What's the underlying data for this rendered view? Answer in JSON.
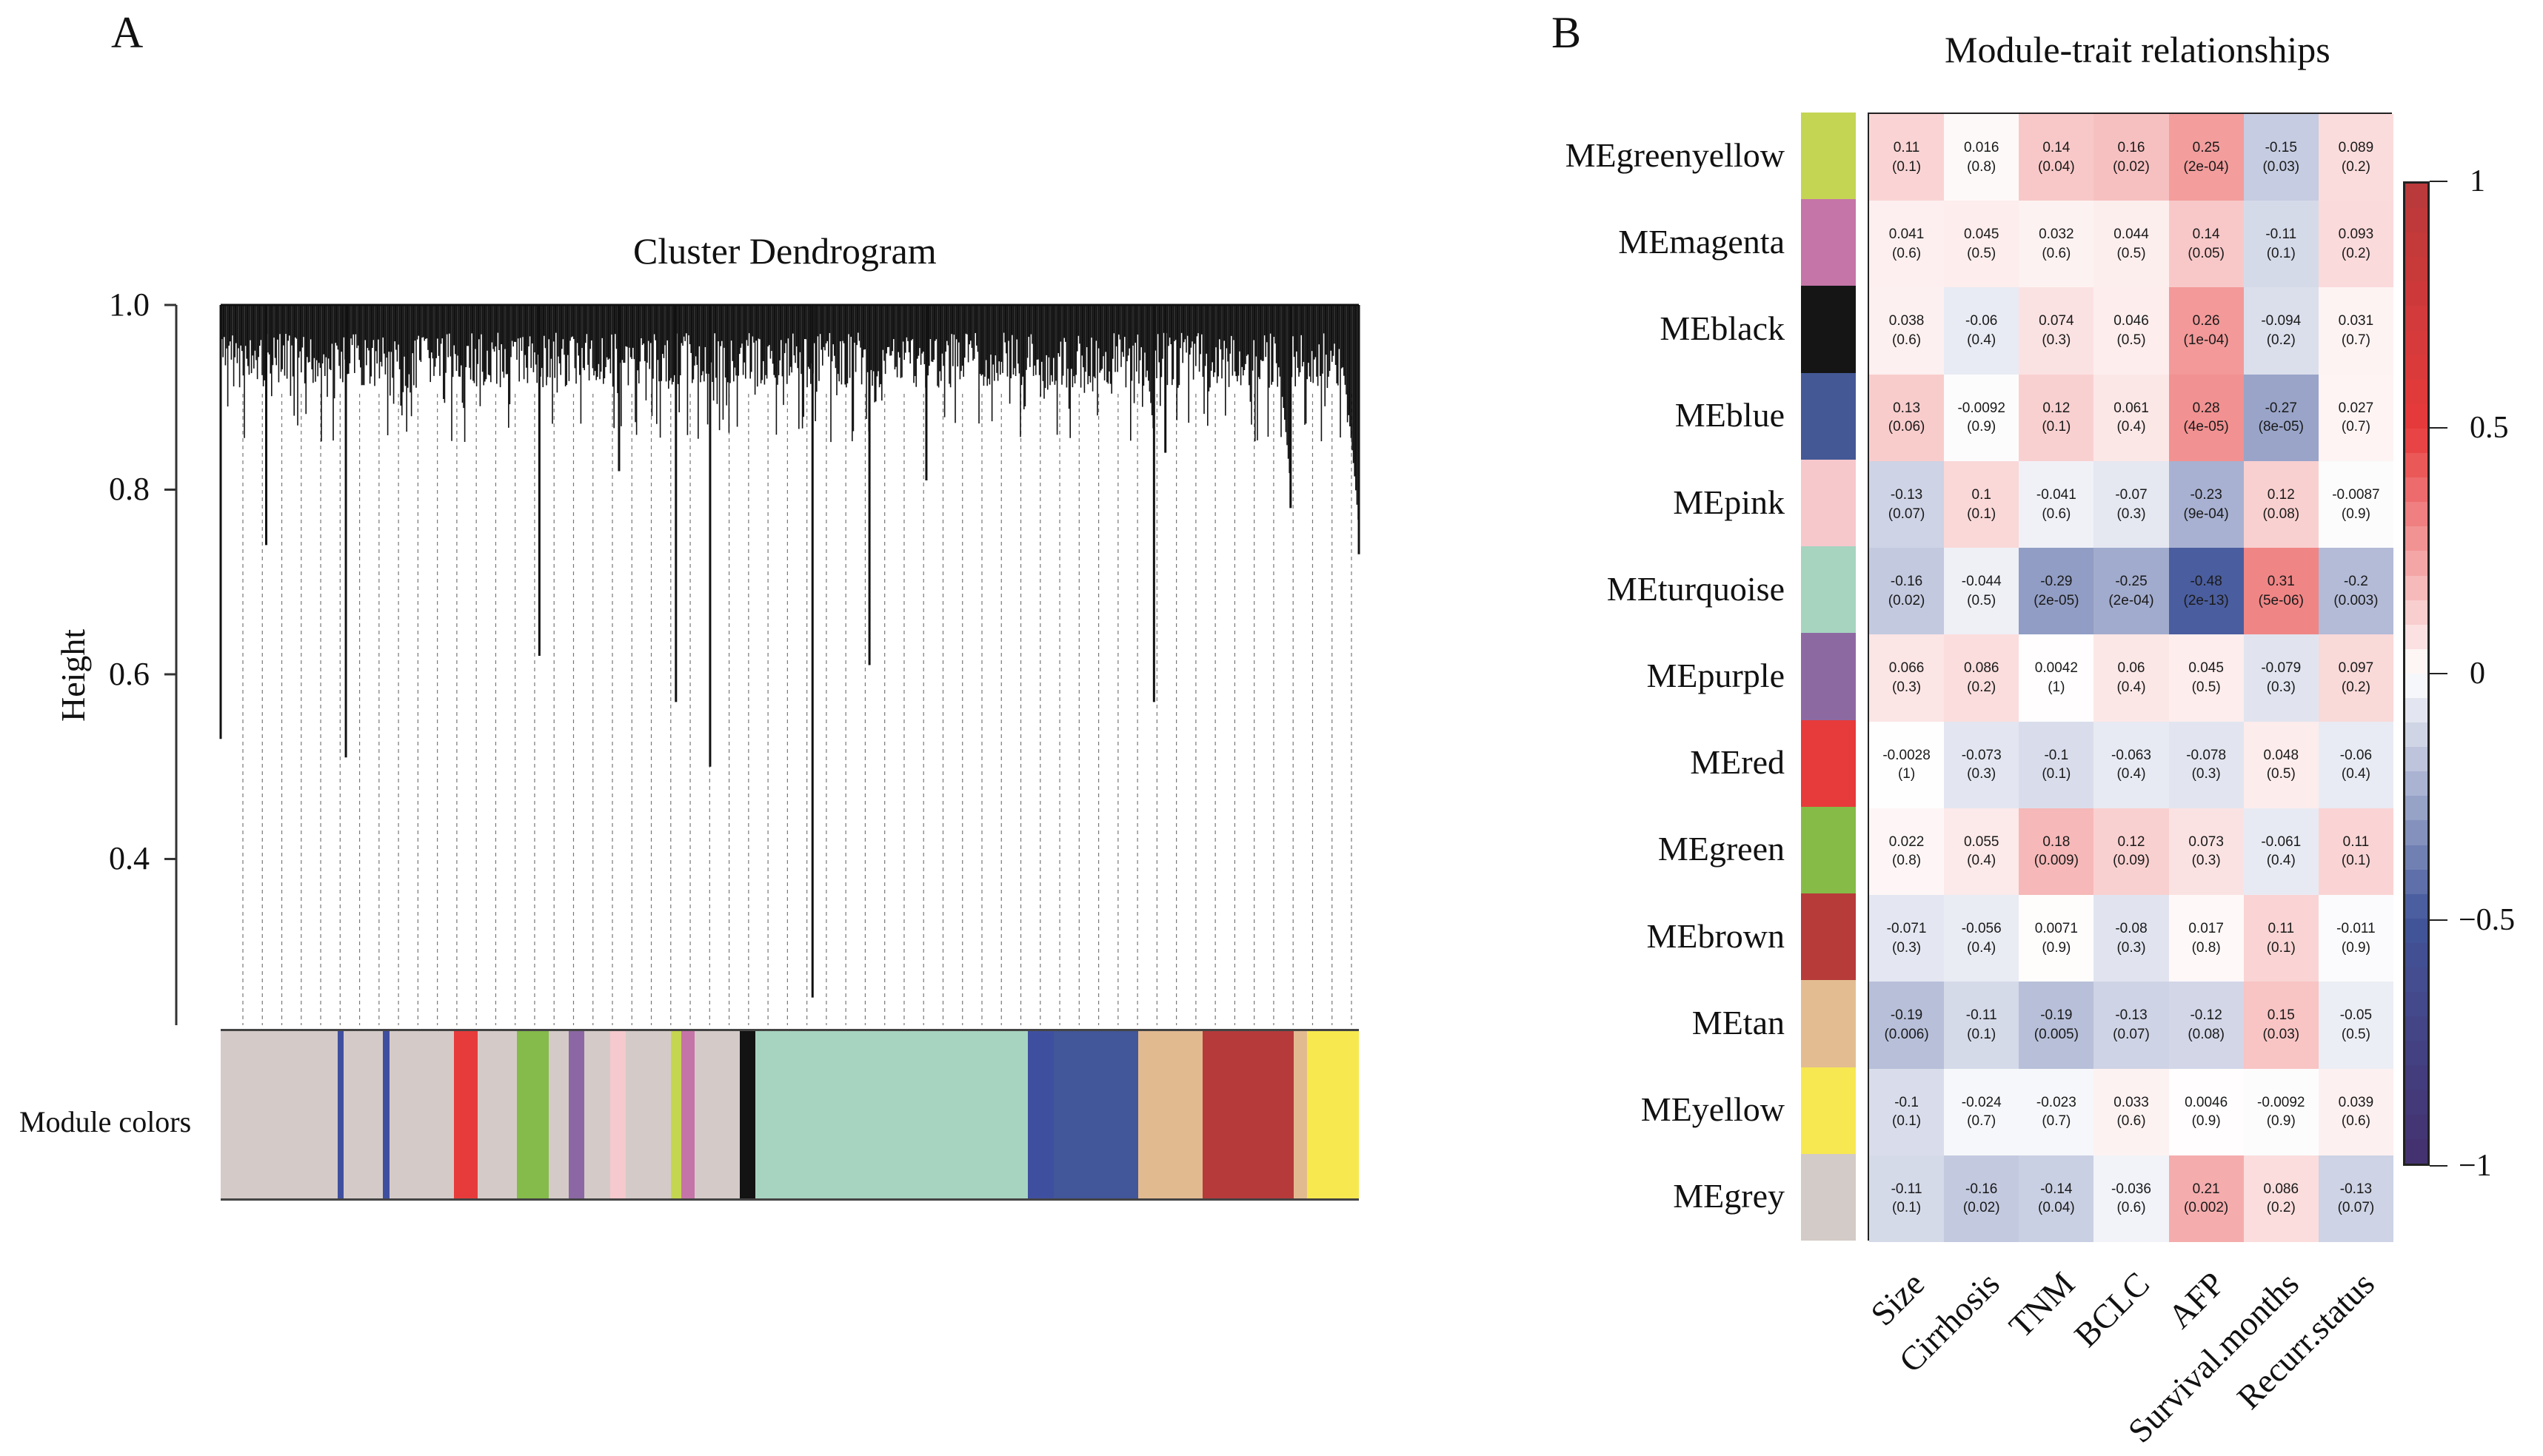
{
  "panels": {
    "a_label": "A",
    "b_label": "B"
  },
  "chart_data": [
    {
      "type": "dendrogram",
      "title": "Cluster Dendrogram",
      "ylabel": "Height",
      "xlabel": "",
      "ylim": [
        0.22,
        1.0
      ],
      "yticks": [
        {
          "value": 1.0,
          "label": "1.0"
        },
        {
          "value": 0.8,
          "label": "0.8"
        },
        {
          "value": 0.6,
          "label": "0.6"
        },
        {
          "value": 0.4,
          "label": "0.4"
        }
      ],
      "color_bar_label": "Module colors",
      "deep_branches": [
        {
          "x": 0.0,
          "height": 0.53
        },
        {
          "x": 0.04,
          "height": 0.74
        },
        {
          "x": 0.11,
          "height": 0.51
        },
        {
          "x": 0.28,
          "height": 0.62
        },
        {
          "x": 0.35,
          "height": 0.82
        },
        {
          "x": 0.4,
          "height": 0.57
        },
        {
          "x": 0.43,
          "height": 0.5
        },
        {
          "x": 0.52,
          "height": 0.25
        },
        {
          "x": 0.57,
          "height": 0.61
        },
        {
          "x": 0.62,
          "height": 0.81
        },
        {
          "x": 0.82,
          "height": 0.57
        },
        {
          "x": 0.83,
          "height": 0.84
        },
        {
          "x": 0.94,
          "height": 0.78
        },
        {
          "x": 1.0,
          "height": 0.73
        }
      ],
      "module_color_segments": [
        {
          "color": "#d4cbc8",
          "fraction": 0.09
        },
        {
          "color": "#3f4fa0",
          "fraction": 0.005
        },
        {
          "color": "#d4cbc8",
          "fraction": 0.03
        },
        {
          "color": "#3f4fa0",
          "fraction": 0.005
        },
        {
          "color": "#d4cbc8",
          "fraction": 0.05
        },
        {
          "color": "#e73b3b",
          "fraction": 0.018
        },
        {
          "color": "#d4cbc8",
          "fraction": 0.03
        },
        {
          "color": "#85bb4a",
          "fraction": 0.025
        },
        {
          "color": "#d4cbc8",
          "fraction": 0.015
        },
        {
          "color": "#8b68a4",
          "fraction": 0.012
        },
        {
          "color": "#d4cbc8",
          "fraction": 0.02
        },
        {
          "color": "#f5c9cd",
          "fraction": 0.012
        },
        {
          "color": "#d4cbc8",
          "fraction": 0.035
        },
        {
          "color": "#c4d54f",
          "fraction": 0.008
        },
        {
          "color": "#c574a8",
          "fraction": 0.01
        },
        {
          "color": "#d4cbc8",
          "fraction": 0.035
        },
        {
          "color": "#131313",
          "fraction": 0.012
        },
        {
          "color": "#a7d4c0",
          "fraction": 0.09
        },
        {
          "color": "#a7d4c0",
          "fraction": 0.12
        },
        {
          "color": "#3f4fa0",
          "fraction": 0.02
        },
        {
          "color": "#42569a",
          "fraction": 0.065
        },
        {
          "color": "#e2ba90",
          "fraction": 0.05
        },
        {
          "color": "#b63a3a",
          "fraction": 0.07
        },
        {
          "color": "#e2ba90",
          "fraction": 0.01
        },
        {
          "color": "#f7e84f",
          "fraction": 0.04
        }
      ]
    },
    {
      "type": "heatmap",
      "title": "Module-trait relationships",
      "columns": [
        "Size",
        "Cirrhosis",
        "TNM",
        "BCLC",
        "AFP",
        "Survival.months",
        "Recurr.status"
      ],
      "rows": [
        {
          "name": "MEgreenyellow",
          "color": "#c4d554",
          "values": [
            0.11,
            0.016,
            0.14,
            0.16,
            0.25,
            -0.15,
            0.089
          ],
          "pvalues": [
            "0.1",
            "0.8",
            "0.04",
            "0.02",
            "2e-04",
            "0.03",
            "0.2"
          ]
        },
        {
          "name": "MEmagenta",
          "color": "#c575a7",
          "values": [
            0.041,
            0.045,
            0.032,
            0.044,
            0.14,
            -0.11,
            0.093
          ],
          "pvalues": [
            "0.6",
            "0.5",
            "0.6",
            "0.5",
            "0.05",
            "0.1",
            "0.2"
          ]
        },
        {
          "name": "MEblack",
          "color": "#151515",
          "values": [
            0.038,
            -0.06,
            0.074,
            0.046,
            0.26,
            -0.094,
            0.031
          ],
          "pvalues": [
            "0.6",
            "0.4",
            "0.3",
            "0.5",
            "1e-04",
            "0.2",
            "0.7"
          ]
        },
        {
          "name": "MEblue",
          "color": "#445896",
          "values": [
            0.13,
            -0.0092,
            0.12,
            0.061,
            0.28,
            -0.27,
            0.027
          ],
          "pvalues": [
            "0.06",
            "0.9",
            "0.1",
            "0.4",
            "4e-05",
            "8e-05",
            "0.7"
          ]
        },
        {
          "name": "MEpink",
          "color": "#f6c8cc",
          "values": [
            -0.13,
            0.1,
            -0.041,
            -0.07,
            -0.23,
            0.12,
            -0.0087
          ],
          "pvalues": [
            "0.07",
            "0.1",
            "0.6",
            "0.3",
            "9e-04",
            "0.08",
            "0.9"
          ]
        },
        {
          "name": "MEturquoise",
          "color": "#a6d4bf",
          "values": [
            -0.16,
            -0.044,
            -0.29,
            -0.25,
            -0.48,
            0.31,
            -0.2
          ],
          "pvalues": [
            "0.02",
            "0.5",
            "2e-05",
            "2e-04",
            "2e-13",
            "5e-06",
            "0.003"
          ]
        },
        {
          "name": "MEpurple",
          "color": "#8d69a2",
          "values": [
            0.066,
            0.086,
            0.0042,
            0.06,
            0.045,
            -0.079,
            0.097
          ],
          "pvalues": [
            "0.3",
            "0.2",
            "1",
            "0.4",
            "0.5",
            "0.3",
            "0.2"
          ]
        },
        {
          "name": "MEred",
          "color": "#e73a3b",
          "values": [
            -0.0028,
            -0.073,
            -0.1,
            -0.063,
            -0.078,
            0.048,
            -0.06
          ],
          "pvalues": [
            "1",
            "0.3",
            "0.1",
            "0.4",
            "0.3",
            "0.5",
            "0.4"
          ]
        },
        {
          "name": "MEgreen",
          "color": "#86bb47",
          "values": [
            0.022,
            0.055,
            0.18,
            0.12,
            0.073,
            -0.061,
            0.11
          ],
          "pvalues": [
            "0.8",
            "0.4",
            "0.009",
            "0.09",
            "0.3",
            "0.4",
            "0.1"
          ]
        },
        {
          "name": "MEbrown",
          "color": "#b63b39",
          "values": [
            -0.071,
            -0.056,
            0.0071,
            -0.08,
            0.017,
            0.11,
            -0.011
          ],
          "pvalues": [
            "0.3",
            "0.4",
            "0.9",
            "0.3",
            "0.8",
            "0.1",
            "0.9"
          ]
        },
        {
          "name": "MEtan",
          "color": "#e3bd91",
          "values": [
            -0.19,
            -0.11,
            -0.19,
            -0.13,
            -0.12,
            0.15,
            -0.05
          ],
          "pvalues": [
            "0.006",
            "0.1",
            "0.005",
            "0.07",
            "0.08",
            "0.03",
            "0.5"
          ]
        },
        {
          "name": "MEyellow",
          "color": "#f7e851",
          "values": [
            -0.1,
            -0.024,
            -0.023,
            0.033,
            0.0046,
            -0.0092,
            0.039
          ],
          "pvalues": [
            "0.1",
            "0.7",
            "0.7",
            "0.6",
            "0.9",
            "0.9",
            "0.6"
          ]
        },
        {
          "name": "MEgrey",
          "color": "#d3cbc7",
          "values": [
            -0.11,
            -0.16,
            -0.14,
            -0.036,
            0.21,
            0.086,
            -0.13
          ],
          "pvalues": [
            "0.1",
            "0.02",
            "0.04",
            "0.6",
            "0.002",
            "0.2",
            "0.07"
          ]
        }
      ],
      "colorscale": {
        "range": [
          -1,
          1
        ],
        "ticks": [
          {
            "value": 1,
            "label": "1"
          },
          {
            "value": 0.5,
            "label": "0.5"
          },
          {
            "value": 0,
            "label": "0"
          },
          {
            "value": -0.5,
            "label": "−0.5"
          },
          {
            "value": -1,
            "label": "−1"
          }
        ],
        "low_color": "#44306e",
        "mid_low_color": "#42569a",
        "mid_color": "#ffffff",
        "mid_high_color": "#e73a3b",
        "high_color": "#b8393a"
      }
    }
  ]
}
